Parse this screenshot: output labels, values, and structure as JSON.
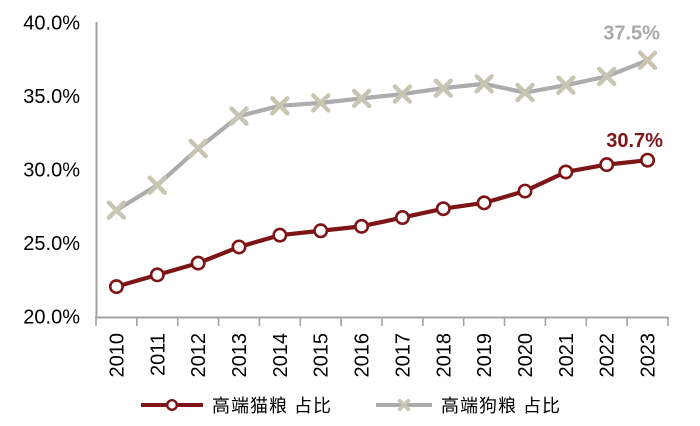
{
  "chart_data": {
    "type": "line",
    "title": "",
    "xlabel": "",
    "ylabel": "",
    "categories": [
      "2010",
      "2011",
      "2012",
      "2013",
      "2014",
      "2015",
      "2016",
      "2017",
      "2018",
      "2019",
      "2020",
      "2021",
      "2022",
      "2023"
    ],
    "series": [
      {
        "name": "高端猫粮 占比",
        "values": [
          22.1,
          22.9,
          23.7,
          24.8,
          25.6,
          25.9,
          26.2,
          26.8,
          27.4,
          27.8,
          28.6,
          29.9,
          30.4,
          30.7
        ],
        "color": "#7D1517",
        "marker": "circle",
        "marker_fill": "#FFFFFF",
        "end_label": "30.7%",
        "end_label_color": "#7D1517"
      },
      {
        "name": "高端狗粮 占比",
        "values": [
          27.3,
          29.0,
          31.5,
          33.7,
          34.4,
          34.6,
          34.9,
          35.2,
          35.6,
          35.9,
          35.3,
          35.8,
          36.4,
          37.5
        ],
        "color": "#ACACAC",
        "marker": "x",
        "marker_color": "#C8C5B3",
        "end_label": "37.5%",
        "end_label_color": "#A9A9A9"
      }
    ],
    "ylim": [
      20,
      40
    ],
    "yticks": [
      {
        "value": 20,
        "label": "20.0%"
      },
      {
        "value": 25,
        "label": "25.0%"
      },
      {
        "value": 30,
        "label": "30.0%"
      },
      {
        "value": 35,
        "label": "35.0%"
      },
      {
        "value": 40,
        "label": "40.0%"
      }
    ],
    "grid": false,
    "legend_position": "bottom",
    "axis_color": "#A3A3A3",
    "tick_label_color": "#000000"
  }
}
